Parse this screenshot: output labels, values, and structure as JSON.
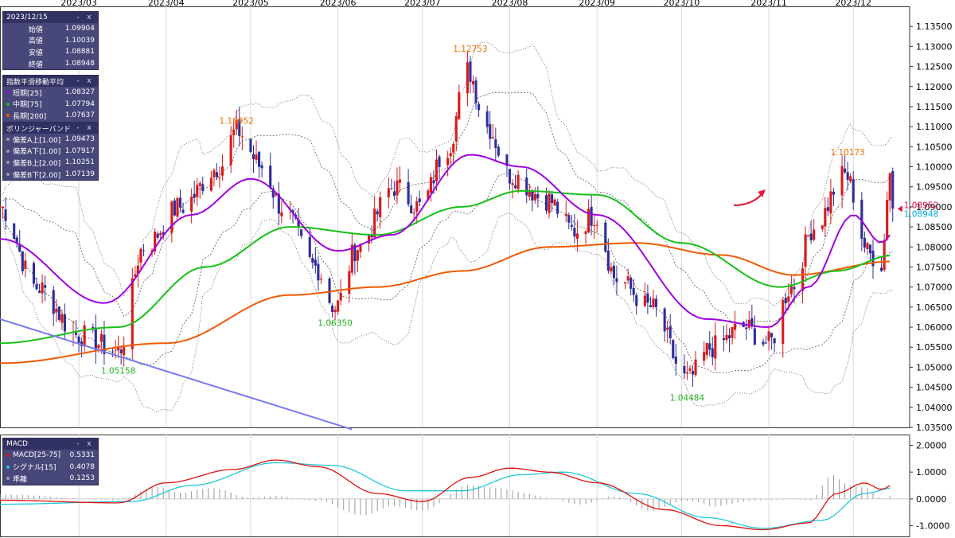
{
  "colors": {
    "up": "#d81a1a",
    "down": "#2d2d9c",
    "ema_short": "#a000e0",
    "ema_mid": "#16c016",
    "ema_long": "#f05a00",
    "macd_line": "#e01010",
    "signal_line": "#20c8d8",
    "histogram": "#9a9a9a",
    "trendline": "#7a7aef",
    "arrow": "#e02040",
    "high_annot": "#f07000",
    "low_annot": "#22b022",
    "price_up_tag": "#e0104a",
    "price_close_tag": "#00a8e0"
  },
  "xaxis": {
    "months": [
      "2023/03",
      "2023/04",
      "2023/05",
      "2023/06",
      "2023/07",
      "2023/08",
      "2023/09",
      "2023/10",
      "2023/11",
      "2023/12"
    ]
  },
  "ohlc_panel": {
    "title": "2023/12/15",
    "rows": [
      {
        "label": "始値",
        "value": "1.09904"
      },
      {
        "label": "高値",
        "value": "1.10039"
      },
      {
        "label": "安値",
        "value": "1.08881"
      },
      {
        "label": "終値",
        "value": "1.08948"
      }
    ]
  },
  "ema_panel": {
    "title": "指数平滑移動平均",
    "rows": [
      {
        "label": "短期[25]",
        "value": "1.08327",
        "color": "#a000e0"
      },
      {
        "label": "中期[75]",
        "value": "1.07794",
        "color": "#16c016"
      },
      {
        "label": "長期[200]",
        "value": "1.07637",
        "color": "#f05a00"
      }
    ]
  },
  "bb_panel": {
    "title": "ボリンジャーバンド",
    "rows": [
      {
        "label": "偏差A上[1.00]",
        "value": "1.09473",
        "color": "#9a9a9a"
      },
      {
        "label": "偏差A下[1.00]",
        "value": "1.07917",
        "color": "#9a9a9a"
      },
      {
        "label": "偏差B上[2.00]",
        "value": "1.10251",
        "color": "#9a9a9a"
      },
      {
        "label": "偏差B下[2.00]",
        "value": "1.07139",
        "color": "#9a9a9a"
      }
    ]
  },
  "macd_panel": {
    "title": "MACD",
    "rows": [
      {
        "label": "MACD[25-75]",
        "value": "0.5331",
        "color": "#e01010"
      },
      {
        "label": "シグナル[15]",
        "value": "0.4078",
        "color": "#20c8d8"
      },
      {
        "label": "乖離",
        "value": "0.1253",
        "color": "#9a9a9a"
      }
    ]
  },
  "panel_controls": {
    "minimize": "-",
    "close": "x"
  },
  "annotations": {
    "high_1": "1.10952",
    "high_2": "1.12753",
    "high_3": "1.10173",
    "low_1": "1.05158",
    "low_2": "1.06350",
    "low_3": "1.04484",
    "last_high_tag": "1.08952",
    "last_close_tag": "1.08948"
  },
  "chart_data": [
    {
      "type": "candlestick",
      "title": "",
      "x_range": [
        "2023-02",
        "2023-12-15"
      ],
      "ylim": [
        1.035,
        1.14
      ],
      "yticks": [
        "1.13500",
        "1.13000",
        "1.12500",
        "1.12000",
        "1.11500",
        "1.11000",
        "1.10500",
        "1.10000",
        "1.09500",
        "1.09000",
        "1.08500",
        "1.08000",
        "1.07500",
        "1.07000",
        "1.06500",
        "1.06000",
        "1.05500",
        "1.05000",
        "1.04500",
        "1.04000",
        "1.03500"
      ],
      "xticks": [
        "2023/03",
        "2023/04",
        "2023/05",
        "2023/06",
        "2023/07",
        "2023/08",
        "2023/09",
        "2023/10",
        "2023/11",
        "2023/12"
      ],
      "price_path_keypoints": [
        [
          "2023-02-01",
          1.09
        ],
        [
          "2023-02-14",
          1.07
        ],
        [
          "2023-03-01",
          1.058
        ],
        [
          "2023-03-15",
          1.054
        ],
        [
          "2023-03-24",
          1.08
        ],
        [
          "2023-04-06",
          1.09
        ],
        [
          "2023-04-20",
          1.1
        ],
        [
          "2023-04-26",
          1.109
        ],
        [
          "2023-05-05",
          1.1
        ],
        [
          "2023-05-12",
          1.09
        ],
        [
          "2023-05-24",
          1.075
        ],
        [
          "2023-05-31",
          1.065
        ],
        [
          "2023-06-08",
          1.08
        ],
        [
          "2023-06-21",
          1.095
        ],
        [
          "2023-06-30",
          1.09
        ],
        [
          "2023-07-10",
          1.105
        ],
        [
          "2023-07-17",
          1.124
        ],
        [
          "2023-07-24",
          1.11
        ],
        [
          "2023-08-01",
          1.098
        ],
        [
          "2023-08-14",
          1.092
        ],
        [
          "2023-08-24",
          1.084
        ],
        [
          "2023-08-31",
          1.088
        ],
        [
          "2023-09-08",
          1.072
        ],
        [
          "2023-09-20",
          1.065
        ],
        [
          "2023-10-03",
          1.047
        ],
        [
          "2023-10-12",
          1.055
        ],
        [
          "2023-10-23",
          1.06
        ],
        [
          "2023-11-01",
          1.056
        ],
        [
          "2023-11-09",
          1.07
        ],
        [
          "2023-11-17",
          1.085
        ],
        [
          "2023-11-28",
          1.098
        ],
        [
          "2023-12-07",
          1.078
        ],
        [
          "2023-12-11",
          1.076
        ],
        [
          "2023-12-14",
          1.099
        ],
        [
          "2023-12-15",
          1.0895
        ]
      ],
      "ema_short_path": [
        [
          "2023-02-01",
          1.082
        ],
        [
          "2023-03-10",
          1.066
        ],
        [
          "2023-04-10",
          1.088
        ],
        [
          "2023-05-01",
          1.097
        ],
        [
          "2023-06-01",
          1.079
        ],
        [
          "2023-06-20",
          1.083
        ],
        [
          "2023-07-18",
          1.103
        ],
        [
          "2023-08-05",
          1.1
        ],
        [
          "2023-09-01",
          1.088
        ],
        [
          "2023-10-10",
          1.062
        ],
        [
          "2023-11-01",
          1.06
        ],
        [
          "2023-11-15",
          1.07
        ],
        [
          "2023-12-01",
          1.088
        ],
        [
          "2023-12-11",
          1.081
        ],
        [
          "2023-12-15",
          1.0833
        ]
      ],
      "ema_mid_path": [
        [
          "2023-02-01",
          1.056
        ],
        [
          "2023-03-15",
          1.06
        ],
        [
          "2023-04-15",
          1.075
        ],
        [
          "2023-05-15",
          1.085
        ],
        [
          "2023-06-15",
          1.083
        ],
        [
          "2023-07-15",
          1.09
        ],
        [
          "2023-08-05",
          1.094
        ],
        [
          "2023-09-01",
          1.093
        ],
        [
          "2023-10-01",
          1.081
        ],
        [
          "2023-11-05",
          1.07
        ],
        [
          "2023-11-25",
          1.074
        ],
        [
          "2023-12-15",
          1.0779
        ]
      ],
      "ema_long_path": [
        [
          "2023-02-01",
          1.051
        ],
        [
          "2023-04-01",
          1.056
        ],
        [
          "2023-05-15",
          1.068
        ],
        [
          "2023-06-15",
          1.07
        ],
        [
          "2023-07-15",
          1.074
        ],
        [
          "2023-08-15",
          1.08
        ],
        [
          "2023-09-15",
          1.081
        ],
        [
          "2023-10-15",
          1.078
        ],
        [
          "2023-11-10",
          1.073
        ],
        [
          "2023-12-15",
          1.0764
        ]
      ],
      "annotations": [
        {
          "label": "1.10952",
          "date": "2023-04-26",
          "value": 1.10952,
          "kind": "high"
        },
        {
          "label": "1.12753",
          "date": "2023-07-18",
          "value": 1.12753,
          "kind": "high"
        },
        {
          "label": "1.10173",
          "date": "2023-11-29",
          "value": 1.10173,
          "kind": "high"
        },
        {
          "label": "1.05158",
          "date": "2023-03-15",
          "value": 1.05158,
          "kind": "low"
        },
        {
          "label": "1.06350",
          "date": "2023-05-31",
          "value": 1.0635,
          "kind": "low"
        },
        {
          "label": "1.04484",
          "date": "2023-10-03",
          "value": 1.04484,
          "kind": "low"
        }
      ],
      "trendline": [
        [
          "2023-02-01",
          1.062
        ],
        [
          "2023-06-06",
          1.0345
        ]
      ]
    },
    {
      "type": "line",
      "title": "MACD",
      "ylim": [
        -1.4,
        2.4
      ],
      "yticks": [
        "2.0000",
        "1.0000",
        "0.0000",
        "-1.0000"
      ],
      "series": [
        {
          "name": "MACD[25-75]",
          "points": [
            [
              "2023-02-01",
              -0.05
            ],
            [
              "2023-03-15",
              -0.15
            ],
            [
              "2023-04-01",
              0.6
            ],
            [
              "2023-04-25",
              1.1
            ],
            [
              "2023-05-10",
              1.45
            ],
            [
              "2023-05-25",
              1.2
            ],
            [
              "2023-06-15",
              0.2
            ],
            [
              "2023-07-01",
              -0.1
            ],
            [
              "2023-07-18",
              0.8
            ],
            [
              "2023-08-01",
              1.15
            ],
            [
              "2023-08-15",
              1.0
            ],
            [
              "2023-09-01",
              0.6
            ],
            [
              "2023-09-25",
              -0.4
            ],
            [
              "2023-10-15",
              -1.0
            ],
            [
              "2023-10-30",
              -1.15
            ],
            [
              "2023-11-15",
              -0.9
            ],
            [
              "2023-11-25",
              0.2
            ],
            [
              "2023-12-05",
              0.6
            ],
            [
              "2023-12-11",
              0.35
            ],
            [
              "2023-12-15",
              0.53
            ]
          ]
        },
        {
          "name": "シグナル[15]",
          "points": [
            [
              "2023-02-01",
              -0.2
            ],
            [
              "2023-03-20",
              -0.1
            ],
            [
              "2023-04-10",
              0.5
            ],
            [
              "2023-05-10",
              1.35
            ],
            [
              "2023-05-30",
              1.25
            ],
            [
              "2023-06-25",
              0.3
            ],
            [
              "2023-07-15",
              0.3
            ],
            [
              "2023-08-05",
              0.9
            ],
            [
              "2023-08-20",
              1.0
            ],
            [
              "2023-09-15",
              0.2
            ],
            [
              "2023-10-10",
              -0.7
            ],
            [
              "2023-10-30",
              -1.1
            ],
            [
              "2023-11-20",
              -0.8
            ],
            [
              "2023-12-05",
              0.2
            ],
            [
              "2023-12-15",
              0.41
            ]
          ]
        },
        {
          "name": "乖離",
          "kind": "histogram",
          "value_last": 0.1253
        }
      ]
    }
  ]
}
